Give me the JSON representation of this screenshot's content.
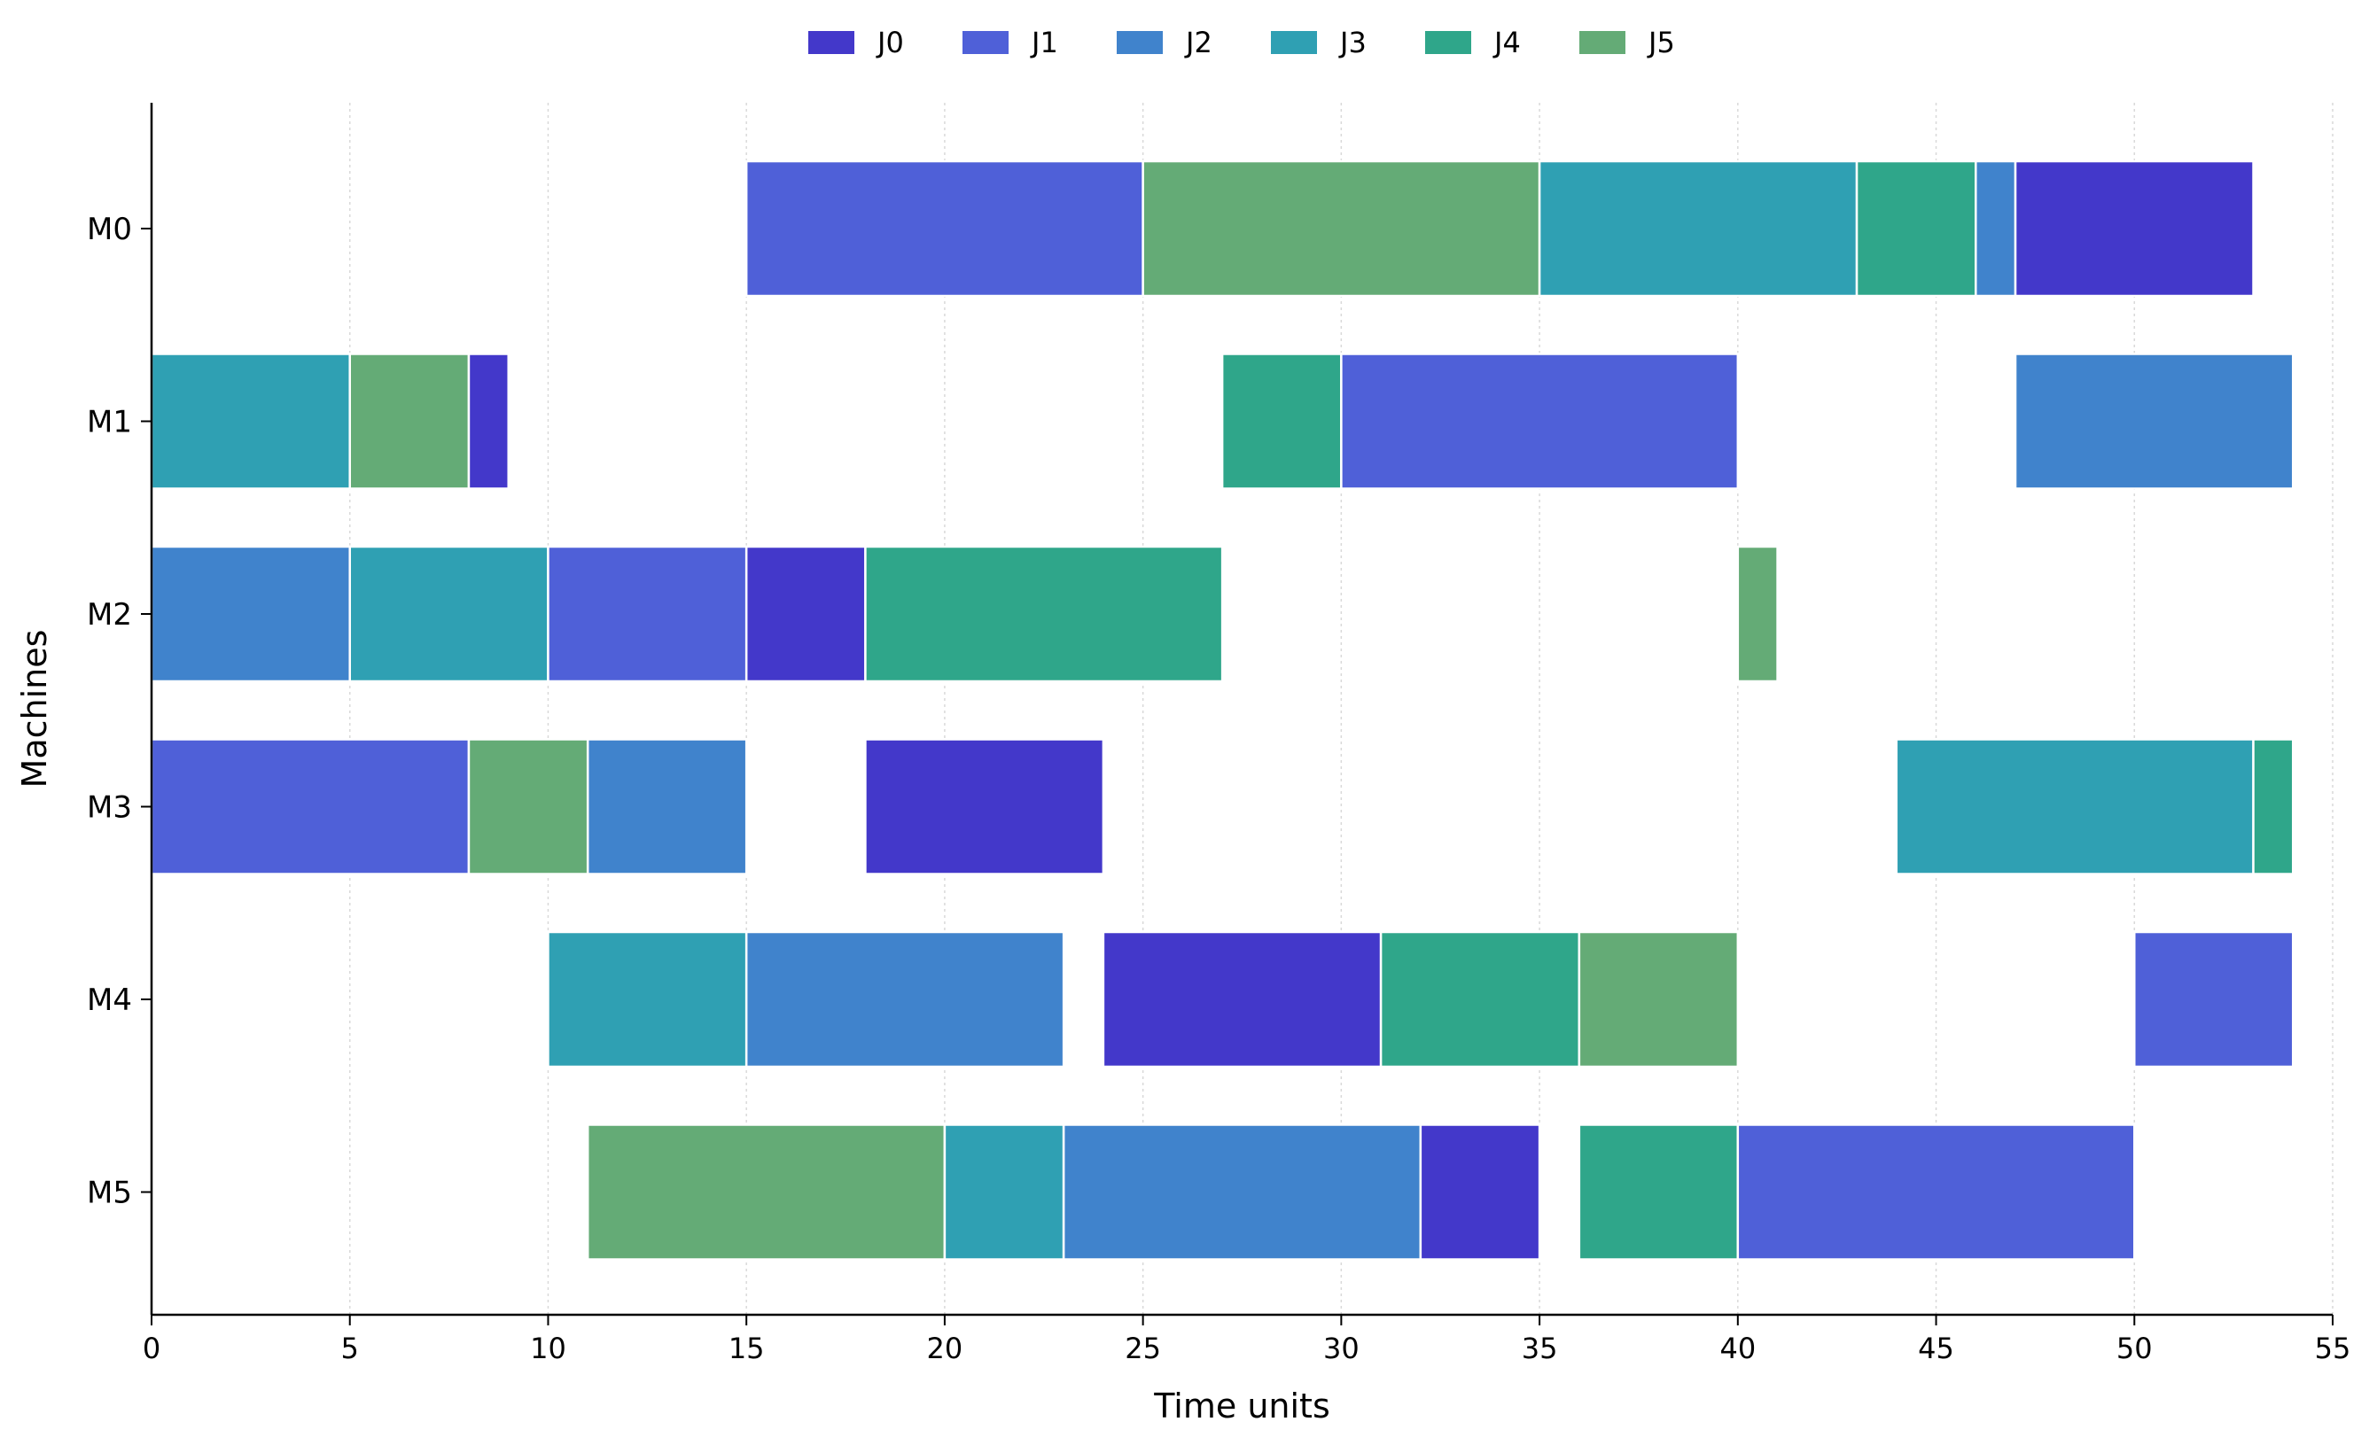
{
  "chart_data": {
    "type": "gantt",
    "xlabel": "Time units",
    "ylabel": "Machines",
    "xlim": [
      0,
      55
    ],
    "xticks": [
      0,
      5,
      10,
      15,
      20,
      25,
      30,
      35,
      40,
      45,
      50,
      55
    ],
    "grid": "vertical dotted",
    "legend_position": "top-center",
    "machines": [
      "M0",
      "M1",
      "M2",
      "M3",
      "M4",
      "M5"
    ],
    "jobs": [
      {
        "name": "J0",
        "color": "#4338ca"
      },
      {
        "name": "J1",
        "color": "#4f60d8"
      },
      {
        "name": "J2",
        "color": "#4083cc"
      },
      {
        "name": "J3",
        "color": "#2fa0b3"
      },
      {
        "name": "J4",
        "color": "#2fa68a"
      },
      {
        "name": "J5",
        "color": "#64ab76"
      }
    ],
    "tasks": [
      {
        "machine": "M0",
        "job": "J1",
        "start": 15,
        "end": 25
      },
      {
        "machine": "M0",
        "job": "J5",
        "start": 25,
        "end": 35
      },
      {
        "machine": "M0",
        "job": "J3",
        "start": 35,
        "end": 43
      },
      {
        "machine": "M0",
        "job": "J4",
        "start": 43,
        "end": 46
      },
      {
        "machine": "M0",
        "job": "J2",
        "start": 46,
        "end": 47
      },
      {
        "machine": "M0",
        "job": "J0",
        "start": 47,
        "end": 53
      },
      {
        "machine": "M1",
        "job": "J3",
        "start": 0,
        "end": 5
      },
      {
        "machine": "M1",
        "job": "J5",
        "start": 5,
        "end": 8
      },
      {
        "machine": "M1",
        "job": "J0",
        "start": 8,
        "end": 9
      },
      {
        "machine": "M1",
        "job": "J4",
        "start": 27,
        "end": 30
      },
      {
        "machine": "M1",
        "job": "J1",
        "start": 30,
        "end": 40
      },
      {
        "machine": "M1",
        "job": "J2",
        "start": 47,
        "end": 54
      },
      {
        "machine": "M2",
        "job": "J2",
        "start": 0,
        "end": 5
      },
      {
        "machine": "M2",
        "job": "J3",
        "start": 5,
        "end": 10
      },
      {
        "machine": "M2",
        "job": "J1",
        "start": 10,
        "end": 15
      },
      {
        "machine": "M2",
        "job": "J0",
        "start": 15,
        "end": 18
      },
      {
        "machine": "M2",
        "job": "J4",
        "start": 18,
        "end": 27
      },
      {
        "machine": "M2",
        "job": "J5",
        "start": 40,
        "end": 41
      },
      {
        "machine": "M3",
        "job": "J1",
        "start": 0,
        "end": 8
      },
      {
        "machine": "M3",
        "job": "J5",
        "start": 8,
        "end": 11
      },
      {
        "machine": "M3",
        "job": "J2",
        "start": 11,
        "end": 15
      },
      {
        "machine": "M3",
        "job": "J0",
        "start": 18,
        "end": 24
      },
      {
        "machine": "M3",
        "job": "J3",
        "start": 44,
        "end": 53
      },
      {
        "machine": "M3",
        "job": "J4",
        "start": 53,
        "end": 54
      },
      {
        "machine": "M4",
        "job": "J3",
        "start": 10,
        "end": 15
      },
      {
        "machine": "M4",
        "job": "J2",
        "start": 15,
        "end": 23
      },
      {
        "machine": "M4",
        "job": "J0",
        "start": 24,
        "end": 31
      },
      {
        "machine": "M4",
        "job": "J4",
        "start": 31,
        "end": 36
      },
      {
        "machine": "M4",
        "job": "J5",
        "start": 36,
        "end": 40
      },
      {
        "machine": "M4",
        "job": "J1",
        "start": 50,
        "end": 54
      },
      {
        "machine": "M5",
        "job": "J5",
        "start": 11,
        "end": 20
      },
      {
        "machine": "M5",
        "job": "J3",
        "start": 20,
        "end": 23
      },
      {
        "machine": "M5",
        "job": "J2",
        "start": 23,
        "end": 32
      },
      {
        "machine": "M5",
        "job": "J0",
        "start": 32,
        "end": 35
      },
      {
        "machine": "M5",
        "job": "J4",
        "start": 36,
        "end": 40
      },
      {
        "machine": "M5",
        "job": "J1",
        "start": 40,
        "end": 50
      }
    ]
  }
}
